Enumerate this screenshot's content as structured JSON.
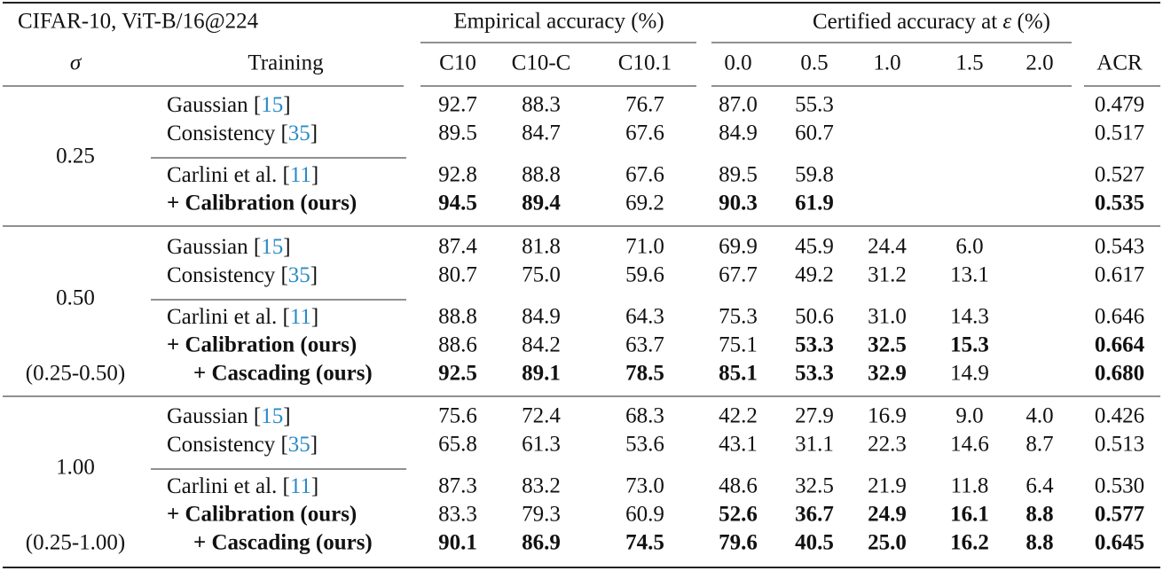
{
  "header": {
    "title": "CIFAR-10, ViT-B/16@224",
    "groups": [
      "Empirical accuracy (%)",
      "Certified accuracy at ε (%)"
    ],
    "columns": [
      "σ",
      "Training",
      "C10",
      "C10-C",
      "C10.1",
      "0.0",
      "0.5",
      "1.0",
      "1.5",
      "2.0",
      "ACR"
    ]
  },
  "groups": [
    {
      "sigma": "0.25",
      "rows": [
        {
          "training": "Gaussian [15]",
          "values": [
            "92.7",
            "88.3",
            "76.7",
            "87.0",
            "55.3",
            null,
            null,
            null,
            "0.479"
          ],
          "bold": []
        },
        {
          "training": "Consistency [35]",
          "values": [
            "89.5",
            "84.7",
            "67.6",
            "84.9",
            "60.7",
            null,
            null,
            null,
            "0.517"
          ],
          "bold": []
        },
        {
          "training": "Carlini et al. [11]",
          "values": [
            "92.8",
            "88.8",
            "67.6",
            "89.5",
            "59.8",
            null,
            null,
            null,
            "0.527"
          ],
          "bold": []
        },
        {
          "training": "+ Calibration (ours)",
          "bold_label": true,
          "values": [
            "94.5",
            "89.4",
            "69.2",
            "90.3",
            "61.9",
            null,
            null,
            null,
            "0.535"
          ],
          "bold": [
            0,
            1,
            3,
            4,
            8
          ]
        }
      ]
    },
    {
      "sigma": "0.50",
      "range": "(0.25-0.50)",
      "rows": [
        {
          "training": "Gaussian [15]",
          "values": [
            "87.4",
            "81.8",
            "71.0",
            "69.9",
            "45.9",
            "24.4",
            "6.0",
            null,
            "0.543"
          ],
          "bold": []
        },
        {
          "training": "Consistency [35]",
          "values": [
            "80.7",
            "75.0",
            "59.6",
            "67.7",
            "49.2",
            "31.2",
            "13.1",
            null,
            "0.617"
          ],
          "bold": []
        },
        {
          "training": "Carlini et al. [11]",
          "values": [
            "88.8",
            "84.9",
            "64.3",
            "75.3",
            "50.6",
            "31.0",
            "14.3",
            null,
            "0.646"
          ],
          "bold": []
        },
        {
          "training": "+ Calibration (ours)",
          "bold_label": true,
          "values": [
            "88.6",
            "84.2",
            "63.7",
            "75.1",
            "53.3",
            "32.5",
            "15.3",
            null,
            "0.664"
          ],
          "bold": [
            4,
            5,
            6,
            8
          ]
        },
        {
          "training": "+ Cascading (ours)",
          "bold_label": true,
          "indent": true,
          "values": [
            "92.5",
            "89.1",
            "78.5",
            "85.1",
            "53.3",
            "32.9",
            "14.9",
            null,
            "0.680"
          ],
          "bold": [
            0,
            1,
            2,
            3,
            4,
            5,
            8
          ]
        }
      ]
    },
    {
      "sigma": "1.00",
      "range": "(0.25-1.00)",
      "rows": [
        {
          "training": "Gaussian [15]",
          "values": [
            "75.6",
            "72.4",
            "68.3",
            "42.2",
            "27.9",
            "16.9",
            "9.0",
            "4.0",
            "0.426"
          ],
          "bold": []
        },
        {
          "training": "Consistency [35]",
          "values": [
            "65.8",
            "61.3",
            "53.6",
            "43.1",
            "31.1",
            "22.3",
            "14.6",
            "8.7",
            "0.513"
          ],
          "bold": []
        },
        {
          "training": "Carlini et al. [11]",
          "values": [
            "87.3",
            "83.2",
            "73.0",
            "48.6",
            "32.5",
            "21.9",
            "11.8",
            "6.4",
            "0.530"
          ],
          "bold": []
        },
        {
          "training": "+ Calibration (ours)",
          "bold_label": true,
          "values": [
            "83.3",
            "79.3",
            "60.9",
            "52.6",
            "36.7",
            "24.9",
            "16.1",
            "8.8",
            "0.577"
          ],
          "bold": [
            3,
            4,
            5,
            6,
            7,
            8
          ]
        },
        {
          "training": "+ Cascading (ours)",
          "bold_label": true,
          "indent": true,
          "values": [
            "90.1",
            "86.9",
            "74.5",
            "79.6",
            "40.5",
            "25.0",
            "16.2",
            "8.8",
            "0.645"
          ],
          "bold": [
            0,
            1,
            2,
            3,
            4,
            5,
            6,
            7,
            8
          ]
        }
      ]
    }
  ]
}
